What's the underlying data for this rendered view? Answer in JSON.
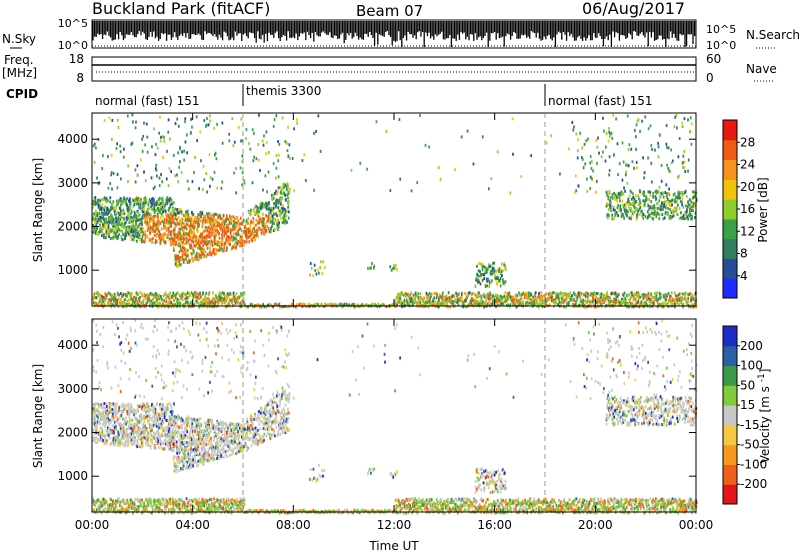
{
  "header": {
    "station": "Buckland Park (fitACF)",
    "beam": "Beam 07",
    "date": "06/Aug/2017"
  },
  "noise_panel": {
    "left_label": "N.Sky",
    "right_label": "N.Search",
    "left_ticks": [
      "10^5",
      "10^0"
    ],
    "right_ticks": [
      "10^5",
      "10^0"
    ]
  },
  "freq_panel": {
    "left_label_1": "Freq.",
    "left_label_2": "[MHz]",
    "right_label": "Nave",
    "left_ticks": [
      "18",
      "8"
    ],
    "right_ticks": [
      "60",
      "0"
    ]
  },
  "cpid_panel": {
    "label": "CPID",
    "modes": [
      {
        "name": "normal (fast) 151",
        "start_hour": 0,
        "end_hour": 6
      },
      {
        "name": "themis 3300",
        "start_hour": 6,
        "end_hour": 18
      },
      {
        "name": "normal (fast) 151",
        "start_hour": 18,
        "end_hour": 24
      }
    ]
  },
  "chart_data": [
    {
      "type": "heatmap",
      "name": "Power",
      "ylabel": "Slant Range [km]",
      "colorbar_label": "Power [dB]",
      "colorbar_ticks": [
        "4",
        "8",
        "12",
        "16",
        "20",
        "24",
        "28"
      ],
      "colorbar_range": [
        0,
        32
      ],
      "colorbar_colors": [
        "#1e2cff",
        "#2a4a9a",
        "#2f7f5c",
        "#3aa04a",
        "#8fce2a",
        "#f2c30c",
        "#f5931c",
        "#f15a12",
        "#e81a10"
      ],
      "x_ticks": [
        "00:00",
        "04:00",
        "08:00",
        "12:00",
        "16:00",
        "20:00",
        "00:00"
      ],
      "x_range_hours": [
        0,
        24
      ],
      "y_ticks": [
        1000,
        2000,
        3000,
        4000
      ],
      "y_range_km": [
        180,
        4600
      ],
      "mode_change_hours": [
        6,
        18
      ]
    },
    {
      "type": "heatmap",
      "name": "Velocity",
      "ylabel": "Slant Range [km]",
      "colorbar_label": "Velocity [m s^-1]",
      "colorbar_ticks": [
        "-200",
        "-100",
        "-50",
        "-15",
        "15",
        "50",
        "100",
        "200"
      ],
      "colorbar_colors": [
        "#e6151a",
        "#f0601a",
        "#f59a1e",
        "#f5c942",
        "#c8c8c8",
        "#7fcb3a",
        "#3a9a4a",
        "#2c5fa8",
        "#1e2cc8"
      ],
      "x_ticks": [
        "00:00",
        "04:00",
        "08:00",
        "12:00",
        "16:00",
        "20:00",
        "00:00"
      ],
      "x_range_hours": [
        0,
        24
      ],
      "xlabel": "Time UT",
      "y_ticks": [
        1000,
        2000,
        3000,
        4000
      ],
      "y_range_km": [
        180,
        4600
      ],
      "mode_change_hours": [
        6,
        18
      ]
    }
  ]
}
